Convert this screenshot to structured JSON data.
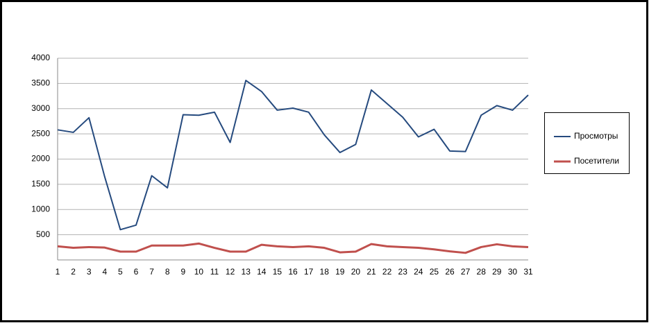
{
  "chart_data": {
    "type": "line",
    "categories": [
      "1",
      "2",
      "3",
      "4",
      "5",
      "6",
      "7",
      "8",
      "9",
      "10",
      "11",
      "12",
      "13",
      "14",
      "15",
      "16",
      "17",
      "18",
      "19",
      "20",
      "21",
      "22",
      "23",
      "24",
      "25",
      "26",
      "27",
      "28",
      "29",
      "30",
      "31"
    ],
    "series": [
      {
        "name": "Просмотры",
        "color": "#254a7e",
        "values": [
          2580,
          2530,
          2820,
          1650,
          600,
          690,
          1670,
          1430,
          2880,
          2870,
          2930,
          2330,
          3560,
          3340,
          2970,
          3010,
          2930,
          2480,
          2130,
          2290,
          3370,
          3100,
          2830,
          2440,
          2590,
          2160,
          2150,
          2870,
          3060,
          2970,
          3270
        ]
      },
      {
        "name": "Посетители",
        "color": "#c0504d",
        "values": [
          270,
          240,
          255,
          245,
          165,
          165,
          285,
          285,
          285,
          325,
          240,
          165,
          165,
          300,
          270,
          255,
          270,
          240,
          150,
          165,
          315,
          270,
          255,
          240,
          210,
          170,
          140,
          255,
          310,
          270,
          255
        ]
      }
    ],
    "ylim": [
      0,
      4000
    ],
    "yticks": [
      500,
      1000,
      1500,
      2000,
      2500,
      3000,
      3500,
      4000
    ],
    "grid": true,
    "legend": "right"
  }
}
